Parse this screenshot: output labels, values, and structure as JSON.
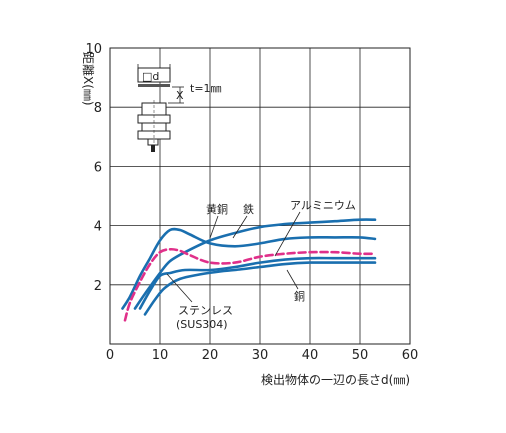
{
  "chart_data": {
    "type": "line",
    "xlabel": "検出物体の一辺の長さd(㎜)",
    "ylabel": "距離X(㎜)",
    "xlim": [
      0,
      60
    ],
    "ylim": [
      0,
      10
    ],
    "x_ticks": [
      "0",
      "10",
      "20",
      "30",
      "40",
      "50",
      "60"
    ],
    "y_ticks": [
      "2",
      "4",
      "6",
      "8",
      "10"
    ],
    "grid": true,
    "inset": {
      "d_label": "□d",
      "x_label": "X",
      "t_label": "t=1㎜"
    },
    "colors": {
      "blue": "#1a6faf",
      "magenta": "#e0308a"
    },
    "series": [
      {
        "name": "黄銅",
        "color": "#1a6faf",
        "dashed": false,
        "x": [
          2.5,
          4,
          6,
          8,
          10,
          12,
          14,
          16,
          20,
          25,
          30,
          35,
          40,
          45,
          50,
          53
        ],
        "y": [
          1.2,
          1.6,
          2.3,
          2.9,
          3.5,
          3.85,
          3.85,
          3.7,
          3.4,
          3.3,
          3.4,
          3.55,
          3.6,
          3.6,
          3.6,
          3.55
        ]
      },
      {
        "name": "鉄",
        "color": "#1a6faf",
        "dashed": false,
        "x": [
          5,
          7,
          10,
          12,
          15,
          20,
          25,
          30,
          35,
          40,
          45,
          50,
          53
        ],
        "y": [
          1.2,
          1.7,
          2.4,
          2.8,
          3.1,
          3.5,
          3.75,
          3.95,
          4.05,
          4.1,
          4.15,
          4.2,
          4.2
        ]
      },
      {
        "name": "アルミニウム",
        "color": "#e0308a",
        "dashed": true,
        "x": [
          3,
          4,
          6,
          8,
          10,
          12,
          14,
          16,
          20,
          25,
          30,
          35,
          40,
          45,
          50,
          53
        ],
        "y": [
          0.8,
          1.4,
          2.1,
          2.7,
          3.1,
          3.2,
          3.15,
          3.0,
          2.75,
          2.75,
          2.95,
          3.05,
          3.1,
          3.1,
          3.05,
          3.05
        ]
      },
      {
        "name": "銅",
        "color": "#1a6faf",
        "dashed": false,
        "x": [
          6,
          8,
          10,
          12,
          15,
          20,
          25,
          30,
          35,
          40,
          45,
          50,
          53
        ],
        "y": [
          1.2,
          1.8,
          2.3,
          2.4,
          2.5,
          2.5,
          2.6,
          2.75,
          2.85,
          2.9,
          2.9,
          2.9,
          2.9
        ]
      },
      {
        "name": "ステンレス(SUS304)",
        "color": "#1a6faf",
        "dashed": false,
        "x": [
          7,
          9,
          11,
          14,
          18,
          22,
          25,
          30,
          35,
          40,
          45,
          50,
          53
        ],
        "y": [
          1.0,
          1.5,
          1.9,
          2.2,
          2.35,
          2.45,
          2.5,
          2.6,
          2.7,
          2.75,
          2.75,
          2.75,
          2.75
        ]
      }
    ],
    "annotations": [
      {
        "text": "黄銅"
      },
      {
        "text": "鉄"
      },
      {
        "text": "アルミニウム"
      },
      {
        "text": "銅"
      },
      {
        "text": "ステンレス"
      },
      {
        "text": "(SUS304)"
      }
    ]
  }
}
